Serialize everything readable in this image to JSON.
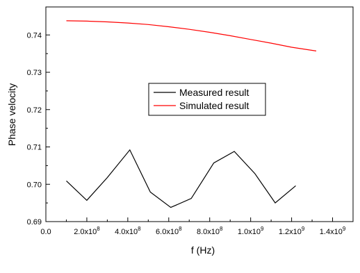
{
  "chart_data": {
    "type": "line",
    "xlabel": "f (Hz)",
    "ylabel": "Phase velocity",
    "xlim": [
      0,
      1500000000
    ],
    "ylim": [
      0.69,
      0.7475
    ],
    "grid": false,
    "legend_position": "center",
    "x_ticks": [
      {
        "value": 0,
        "label": "0.0"
      },
      {
        "value": 200000000,
        "base": "2.0x10",
        "exp": "8"
      },
      {
        "value": 400000000,
        "base": "4.0x10",
        "exp": "8"
      },
      {
        "value": 600000000,
        "base": "6.0x10",
        "exp": "8"
      },
      {
        "value": 800000000,
        "base": "8.0x10",
        "exp": "8"
      },
      {
        "value": 1000000000,
        "base": "1.0x10",
        "exp": "9"
      },
      {
        "value": 1200000000,
        "base": "1.2x10",
        "exp": "9"
      },
      {
        "value": 1400000000,
        "base": "1.4x10",
        "exp": "9"
      }
    ],
    "y_ticks": [
      {
        "value": 0.69,
        "label": "0.69"
      },
      {
        "value": 0.7,
        "label": "0.70"
      },
      {
        "value": 0.71,
        "label": "0.71"
      },
      {
        "value": 0.72,
        "label": "0.72"
      },
      {
        "value": 0.73,
        "label": "0.73"
      },
      {
        "value": 0.74,
        "label": "0.74"
      }
    ],
    "series": [
      {
        "name": "Measured result",
        "color": "#000000",
        "x": [
          100000000,
          200000000,
          300000000,
          410000000,
          510000000,
          610000000,
          710000000,
          820000000,
          920000000,
          1020000000,
          1120000000,
          1220000000
        ],
        "y": [
          0.7009,
          0.6957,
          0.7018,
          0.7092,
          0.6979,
          0.6938,
          0.6962,
          0.7057,
          0.7088,
          0.7029,
          0.695,
          0.6996
        ]
      },
      {
        "name": "Simulated result",
        "color": "#ff0000",
        "x": [
          100000000,
          200000000,
          300000000,
          400000000,
          500000000,
          600000000,
          700000000,
          800000000,
          900000000,
          1000000000,
          1100000000,
          1200000000,
          1320000000
        ],
        "y": [
          0.7438,
          0.7437,
          0.7435,
          0.7432,
          0.7428,
          0.7422,
          0.7415,
          0.7407,
          0.7398,
          0.7388,
          0.7378,
          0.7367,
          0.7357
        ]
      }
    ]
  }
}
